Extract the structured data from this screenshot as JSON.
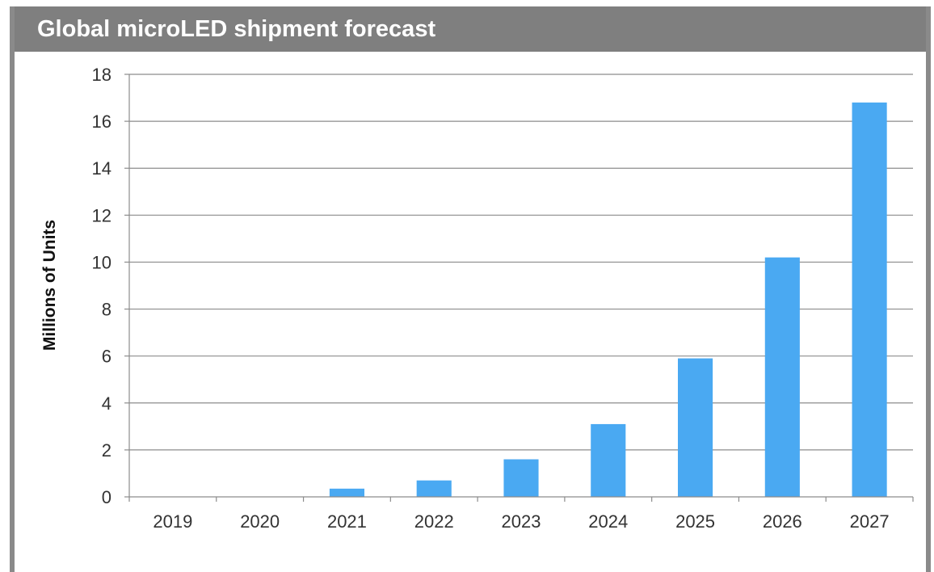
{
  "header": {
    "title": "Global microLED shipment forecast"
  },
  "chart_data": {
    "type": "bar",
    "title": "Global microLED shipment forecast",
    "xlabel": "",
    "ylabel": "Millions of Units",
    "categories": [
      "2019",
      "2020",
      "2021",
      "2022",
      "2023",
      "2024",
      "2025",
      "2026",
      "2027"
    ],
    "values": [
      0,
      0,
      0.35,
      0.7,
      1.6,
      3.1,
      5.9,
      10.2,
      16.8
    ],
    "ylim": [
      0,
      18
    ],
    "yticks": [
      0,
      2,
      4,
      6,
      8,
      10,
      12,
      14,
      16,
      18
    ],
    "grid": true,
    "legend": "none",
    "bar_color": "#4aa9f2"
  }
}
